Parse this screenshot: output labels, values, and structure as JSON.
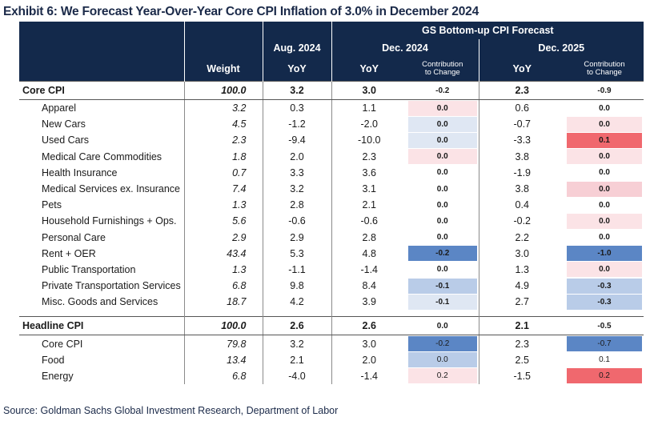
{
  "title": "Exhibit 6: We Forecast Year-Over-Year Core CPI Inflation of 3.0% in December 2024",
  "source": "Source: Goldman Sachs Global Investment Research, Department of Labor",
  "header": {
    "gs_forecast": "GS Bottom-up CPI Forecast",
    "aug2024": "Aug. 2024",
    "dec2024": "Dec. 2024",
    "dec2025": "Dec. 2025",
    "weight": "Weight",
    "yoy": "YoY",
    "contrib_l1": "Contribution",
    "contrib_l2": "to Change"
  },
  "colors": {
    "header_bg": "#13294b",
    "strong_blue": "#5b86c5",
    "light_blue": "#b9cce8",
    "pale_blue": "#dfe7f3",
    "pale_pink": "#fbe3e6",
    "light_pink": "#f7cfd5",
    "strong_red": "#f0686e"
  },
  "core_cpi": {
    "label": "Core CPI",
    "weight": "100.0",
    "aug": "3.2",
    "dec24": "3.0",
    "c24": "-0.2",
    "dec25": "2.3",
    "c25": "-0.9"
  },
  "core_rows": [
    {
      "label": "Apparel",
      "weight": "3.2",
      "aug": "0.3",
      "dec24": "1.1",
      "c24": "0.0",
      "c24_bg": "#fbe3e6",
      "dec25": "0.6",
      "c25": "0.0",
      "c25_bg": "#ffffff"
    },
    {
      "label": "New Cars",
      "weight": "4.5",
      "aug": "-1.2",
      "dec24": "-2.0",
      "c24": "0.0",
      "c24_bg": "#dfe7f3",
      "dec25": "-0.7",
      "c25": "0.0",
      "c25_bg": "#fbe3e6"
    },
    {
      "label": "Used Cars",
      "weight": "2.3",
      "aug": "-9.4",
      "dec24": "-10.0",
      "c24": "0.0",
      "c24_bg": "#dfe7f3",
      "dec25": "-3.3",
      "c25": "0.1",
      "c25_bg": "#f0686e"
    },
    {
      "label": "Medical Care Commodities",
      "weight": "1.8",
      "aug": "2.0",
      "dec24": "2.3",
      "c24": "0.0",
      "c24_bg": "#fbe3e6",
      "dec25": "3.8",
      "c25": "0.0",
      "c25_bg": "#fbe3e6"
    },
    {
      "label": "Health Insurance",
      "weight": "0.7",
      "aug": "3.3",
      "dec24": "3.6",
      "c24": "0.0",
      "c24_bg": "#ffffff",
      "dec25": "-1.9",
      "c25": "0.0",
      "c25_bg": "#ffffff"
    },
    {
      "label": "Medical Services ex. Insurance",
      "weight": "7.4",
      "aug": "3.2",
      "dec24": "3.1",
      "c24": "0.0",
      "c24_bg": "#ffffff",
      "dec25": "3.8",
      "c25": "0.0",
      "c25_bg": "#f7cfd5"
    },
    {
      "label": "Pets",
      "weight": "1.3",
      "aug": "2.8",
      "dec24": "2.1",
      "c24": "0.0",
      "c24_bg": "#ffffff",
      "dec25": "0.4",
      "c25": "0.0",
      "c25_bg": "#ffffff"
    },
    {
      "label": "Household Furnishings + Ops.",
      "weight": "5.6",
      "aug": "-0.6",
      "dec24": "-0.6",
      "c24": "0.0",
      "c24_bg": "#ffffff",
      "dec25": "-0.2",
      "c25": "0.0",
      "c25_bg": "#fbe3e6"
    },
    {
      "label": "Personal Care",
      "weight": "2.9",
      "aug": "2.9",
      "dec24": "2.8",
      "c24": "0.0",
      "c24_bg": "#ffffff",
      "dec25": "2.2",
      "c25": "0.0",
      "c25_bg": "#ffffff"
    },
    {
      "label": "Rent + OER",
      "weight": "43.4",
      "aug": "5.3",
      "dec24": "4.8",
      "c24": "-0.2",
      "c24_bg": "#5b86c5",
      "dec25": "3.0",
      "c25": "-1.0",
      "c25_bg": "#5b86c5"
    },
    {
      "label": "Public Transportation",
      "weight": "1.3",
      "aug": "-1.1",
      "dec24": "-1.4",
      "c24": "0.0",
      "c24_bg": "#ffffff",
      "dec25": "1.3",
      "c25": "0.0",
      "c25_bg": "#fbe3e6"
    },
    {
      "label": "Private Transportation Services",
      "weight": "6.8",
      "aug": "9.8",
      "dec24": "8.4",
      "c24": "-0.1",
      "c24_bg": "#b9cce8",
      "dec25": "4.9",
      "c25": "-0.3",
      "c25_bg": "#b9cce8"
    },
    {
      "label": "Misc. Goods and Services",
      "weight": "18.7",
      "aug": "4.2",
      "dec24": "3.9",
      "c24": "-0.1",
      "c24_bg": "#dfe7f3",
      "dec25": "2.7",
      "c25": "-0.3",
      "c25_bg": "#b9cce8"
    }
  ],
  "headline_cpi": {
    "label": "Headline CPI",
    "weight": "100.0",
    "aug": "2.6",
    "dec24": "2.6",
    "c24": "0.0",
    "dec25": "2.1",
    "c25": "-0.5"
  },
  "headline_rows": [
    {
      "label": "Core CPI",
      "weight": "79.8",
      "aug": "3.2",
      "dec24": "3.0",
      "c24": "-0.2",
      "c24_bg": "#5b86c5",
      "dec25": "2.3",
      "c25": "-0.7",
      "c25_bg": "#5b86c5"
    },
    {
      "label": "Food",
      "weight": "13.4",
      "aug": "2.1",
      "dec24": "2.0",
      "c24": "0.0",
      "c24_bg": "#b9cce8",
      "dec25": "2.5",
      "c25": "0.1",
      "c25_bg": "#ffffff"
    },
    {
      "label": "Energy",
      "weight": "6.8",
      "aug": "-4.0",
      "dec24": "-1.4",
      "c24": "0.2",
      "c24_bg": "#fbe3e6",
      "dec25": "-1.5",
      "c25": "0.2",
      "c25_bg": "#f0686e"
    }
  ]
}
